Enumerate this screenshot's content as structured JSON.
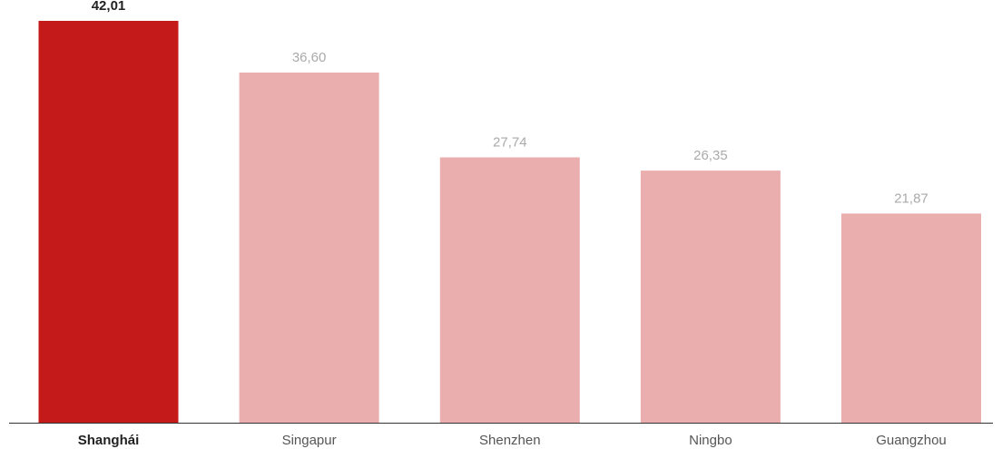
{
  "chart_data": {
    "type": "bar",
    "title": "",
    "xlabel": "",
    "ylabel": "",
    "categories": [
      "Shanghái",
      "Singapur",
      "Shenzhen",
      "Ningbo",
      "Guangzhou"
    ],
    "values": [
      42.01,
      36.6,
      27.74,
      26.35,
      21.87
    ],
    "value_labels": [
      "42,01",
      "36,60",
      "27,74",
      "26,35",
      "21,87"
    ],
    "highlight_index": 0,
    "ylim": [
      0,
      44
    ],
    "grid": false,
    "legend": "none"
  },
  "colors": {
    "highlight_bar": "#c41a1a",
    "bar": "#ebaeae",
    "highlight_label": "#222222",
    "label": "#aaaaaa",
    "category_label": "#555555",
    "axis": "#333333"
  }
}
